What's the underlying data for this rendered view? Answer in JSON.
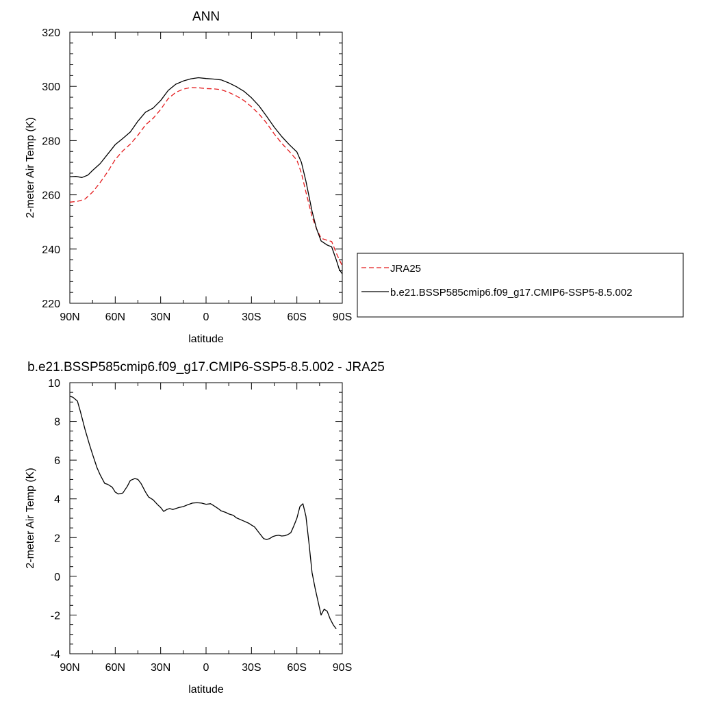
{
  "chart_data": [
    {
      "type": "line",
      "title": "ANN",
      "xlabel": "latitude",
      "ylabel": "2-meter Air Temp (K)",
      "xlim": [
        90,
        -90
      ],
      "ylim": [
        220,
        320
      ],
      "x_ticks": [
        {
          "value": 90,
          "label": "90N"
        },
        {
          "value": 60,
          "label": "60N"
        },
        {
          "value": 30,
          "label": "30N"
        },
        {
          "value": 0,
          "label": "0"
        },
        {
          "value": -30,
          "label": "30S"
        },
        {
          "value": -60,
          "label": "60S"
        },
        {
          "value": -90,
          "label": "90S"
        }
      ],
      "y_ticks": [
        220,
        240,
        260,
        280,
        300,
        320
      ],
      "legend_position": "right",
      "series": [
        {
          "name": "JRA25",
          "color": "#e41a1c",
          "dash": "dashed",
          "points": [
            [
              90,
              257.3
            ],
            [
              85,
              257.6
            ],
            [
              80,
              258.4
            ],
            [
              75,
              261
            ],
            [
              70,
              264.5
            ],
            [
              65,
              268.5
            ],
            [
              60,
              273
            ],
            [
              55,
              276.2
            ],
            [
              50,
              278.7
            ],
            [
              45,
              282
            ],
            [
              40,
              285.8
            ],
            [
              35,
              288.2
            ],
            [
              30,
              291.5
            ],
            [
              25,
              295.5
            ],
            [
              20,
              297.8
            ],
            [
              15,
              299
            ],
            [
              10,
              299.6
            ],
            [
              5,
              299.5
            ],
            [
              0,
              299.2
            ],
            [
              -5,
              299.1
            ],
            [
              -10,
              298.8
            ],
            [
              -15,
              297.8
            ],
            [
              -20,
              296.5
            ],
            [
              -25,
              294.8
            ],
            [
              -30,
              292.5
            ],
            [
              -35,
              289.8
            ],
            [
              -40,
              286.5
            ],
            [
              -45,
              282.5
            ],
            [
              -50,
              279
            ],
            [
              -55,
              276
            ],
            [
              -60,
              272.8
            ],
            [
              -63,
              268
            ],
            [
              -66,
              261
            ],
            [
              -70,
              252
            ],
            [
              -73,
              247.5
            ],
            [
              -76,
              244
            ],
            [
              -80,
              243.2
            ],
            [
              -83,
              242.8
            ],
            [
              -86,
              238.5
            ],
            [
              -90,
              233.8
            ]
          ]
        },
        {
          "name": "b.e21.BSSP585cmip6.f09_g17.CMIP6-SSP5-8.5.002",
          "color": "#000000",
          "dash": "solid",
          "points": [
            [
              90,
              266.7
            ],
            [
              86,
              266.8
            ],
            [
              82,
              266.4
            ],
            [
              78,
              267.3
            ],
            [
              75,
              269
            ],
            [
              70,
              271.5
            ],
            [
              65,
              275
            ],
            [
              60,
              278.5
            ],
            [
              55,
              280.8
            ],
            [
              50,
              283.2
            ],
            [
              45,
              287.2
            ],
            [
              40,
              290.5
            ],
            [
              35,
              292
            ],
            [
              30,
              294.8
            ],
            [
              25,
              298.5
            ],
            [
              20,
              300.8
            ],
            [
              15,
              302
            ],
            [
              10,
              302.8
            ],
            [
              5,
              303.2
            ],
            [
              0,
              302.9
            ],
            [
              -5,
              302.7
            ],
            [
              -10,
              302.4
            ],
            [
              -15,
              301.3
            ],
            [
              -20,
              299.9
            ],
            [
              -25,
              298.2
            ],
            [
              -30,
              295.8
            ],
            [
              -35,
              292.8
            ],
            [
              -40,
              289
            ],
            [
              -45,
              285
            ],
            [
              -50,
              281.5
            ],
            [
              -55,
              278.5
            ],
            [
              -60,
              275.8
            ],
            [
              -63,
              272
            ],
            [
              -66,
              265
            ],
            [
              -70,
              254
            ],
            [
              -73,
              247.5
            ],
            [
              -76,
              243
            ],
            [
              -80,
              241.5
            ],
            [
              -83,
              240.8
            ],
            [
              -86,
              236
            ],
            [
              -88,
              232.5
            ],
            [
              -90,
              230.8
            ]
          ]
        }
      ]
    },
    {
      "type": "line",
      "title": "b.e21.BSSP585cmip6.f09_g17.CMIP6-SSP5-8.5.002 - JRA25",
      "xlabel": "latitude",
      "ylabel": "2-meter Air Temp (K)",
      "xlim": [
        90,
        -90
      ],
      "ylim": [
        -4,
        10
      ],
      "x_ticks": [
        {
          "value": 90,
          "label": "90N"
        },
        {
          "value": 60,
          "label": "60N"
        },
        {
          "value": 30,
          "label": "30N"
        },
        {
          "value": 0,
          "label": "0"
        },
        {
          "value": -30,
          "label": "30S"
        },
        {
          "value": -60,
          "label": "60S"
        },
        {
          "value": -90,
          "label": "90S"
        }
      ],
      "y_ticks": [
        -4,
        -2,
        0,
        2,
        4,
        6,
        8,
        10
      ],
      "series": [
        {
          "color": "#000000",
          "dash": "solid",
          "points": [
            [
              90,
              9.3
            ],
            [
              88,
              9.25
            ],
            [
              85,
              9.05
            ],
            [
              83,
              8.5
            ],
            [
              80,
              7.6
            ],
            [
              77,
              6.8
            ],
            [
              75,
              6.3
            ],
            [
              72,
              5.6
            ],
            [
              70,
              5.25
            ],
            [
              67,
              4.8
            ],
            [
              65,
              4.75
            ],
            [
              62,
              4.6
            ],
            [
              60,
              4.35
            ],
            [
              58,
              4.25
            ],
            [
              55,
              4.3
            ],
            [
              52,
              4.65
            ],
            [
              50,
              4.95
            ],
            [
              47,
              5.05
            ],
            [
              45,
              5.0
            ],
            [
              43,
              4.8
            ],
            [
              40,
              4.35
            ],
            [
              38,
              4.1
            ],
            [
              35,
              3.95
            ],
            [
              32,
              3.7
            ],
            [
              30,
              3.55
            ],
            [
              28,
              3.35
            ],
            [
              26,
              3.45
            ],
            [
              24,
              3.5
            ],
            [
              22,
              3.45
            ],
            [
              20,
              3.5
            ],
            [
              18,
              3.55
            ],
            [
              15,
              3.6
            ],
            [
              12,
              3.7
            ],
            [
              9,
              3.78
            ],
            [
              6,
              3.8
            ],
            [
              3,
              3.78
            ],
            [
              0,
              3.72
            ],
            [
              -3,
              3.75
            ],
            [
              -5,
              3.65
            ],
            [
              -8,
              3.5
            ],
            [
              -10,
              3.38
            ],
            [
              -13,
              3.3
            ],
            [
              -15,
              3.22
            ],
            [
              -18,
              3.15
            ],
            [
              -20,
              3.02
            ],
            [
              -23,
              2.92
            ],
            [
              -25,
              2.85
            ],
            [
              -28,
              2.75
            ],
            [
              -30,
              2.65
            ],
            [
              -32,
              2.55
            ],
            [
              -34,
              2.35
            ],
            [
              -36,
              2.15
            ],
            [
              -38,
              1.95
            ],
            [
              -40,
              1.9
            ],
            [
              -42,
              1.95
            ],
            [
              -44,
              2.05
            ],
            [
              -46,
              2.1
            ],
            [
              -48,
              2.12
            ],
            [
              -50,
              2.08
            ],
            [
              -52,
              2.1
            ],
            [
              -54,
              2.15
            ],
            [
              -56,
              2.25
            ],
            [
              -58,
              2.6
            ],
            [
              -60,
              3.0
            ],
            [
              -62,
              3.6
            ],
            [
              -64,
              3.75
            ],
            [
              -66,
              3.1
            ],
            [
              -68,
              1.7
            ],
            [
              -70,
              0.2
            ],
            [
              -72,
              -0.6
            ],
            [
              -74,
              -1.3
            ],
            [
              -76,
              -2.0
            ],
            [
              -78,
              -1.7
            ],
            [
              -80,
              -1.8
            ],
            [
              -82,
              -2.2
            ],
            [
              -84,
              -2.5
            ],
            [
              -86,
              -2.72
            ]
          ]
        }
      ]
    }
  ]
}
